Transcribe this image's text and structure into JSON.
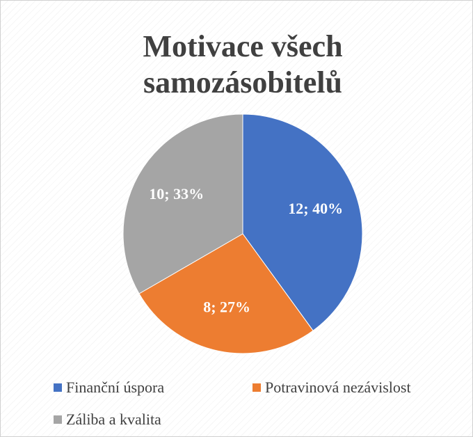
{
  "chart_data": {
    "type": "pie",
    "title": "Motivace všech samozásobitelů",
    "categories": [
      "Finanční úspora",
      "Potravinová nezávislost",
      "Záliba a kvalita"
    ],
    "values": [
      12,
      8,
      10
    ],
    "value_labels": [
      "12; 40%",
      "8; 27%",
      "10; 33%"
    ],
    "colors": [
      "#4472c4",
      "#ed7d31",
      "#a5a5a5"
    ],
    "legend": "bottom"
  }
}
